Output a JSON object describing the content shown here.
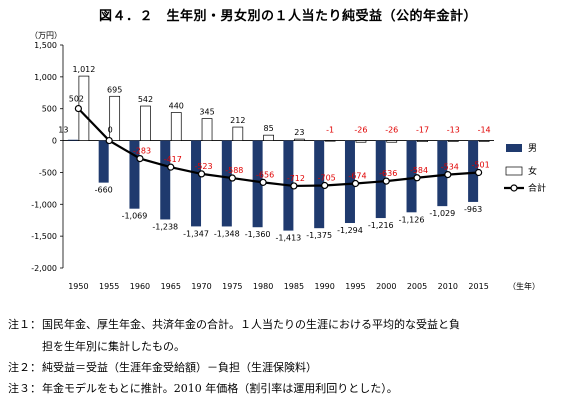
{
  "figure_title": "図４．２　生年別・男女別の１人当たり純受益（公的年金計）",
  "chart_data": {
    "type": "bar",
    "y_unit": "（万円）",
    "x_unit": "（生年）",
    "categories": [
      "1950",
      "1955",
      "1960",
      "1965",
      "1970",
      "1975",
      "1980",
      "1985",
      "1990",
      "1995",
      "2000",
      "2005",
      "2010",
      "2015"
    ],
    "ylim": [
      -2000,
      1500
    ],
    "y_ticks": [
      1500,
      1000,
      500,
      0,
      -500,
      -1000,
      -1500,
      -2000
    ],
    "y_tick_labels": [
      "1,500",
      "1,000",
      "500",
      "0",
      "-500",
      "-1,000",
      "-1,500",
      "-2,000"
    ],
    "grid": false,
    "legend_position": "right",
    "series": [
      {
        "name": "男",
        "kind": "bar",
        "color": "#1f3a6e",
        "values": [
          13,
          -660,
          -1069,
          -1238,
          -1347,
          -1348,
          -1360,
          -1413,
          -1375,
          -1294,
          -1216,
          -1126,
          -1029,
          -963
        ],
        "labels": [
          "13",
          "-660",
          "-1,069",
          "-1,238",
          "-1,347",
          "-1,348",
          "-1,360",
          "-1,413",
          "-1,375",
          "-1,294",
          "-1,216",
          "-1,126",
          "-1,029",
          "-963"
        ]
      },
      {
        "name": "女",
        "kind": "bar",
        "color": "#ffffff",
        "values": [
          1012,
          695,
          542,
          440,
          345,
          212,
          85,
          23,
          -1,
          -26,
          -26,
          -17,
          -13,
          -14
        ],
        "labels": [
          "1,012",
          "695",
          "542",
          "440",
          "345",
          "212",
          "85",
          "23",
          "-1",
          "-26",
          "-26",
          "-17",
          "-13",
          "-14"
        ]
      },
      {
        "name": "合計",
        "kind": "line",
        "color": "#000000",
        "values": [
          502,
          0,
          -283,
          -417,
          -523,
          -588,
          -656,
          -712,
          -705,
          -674,
          -636,
          -584,
          -534,
          -501
        ],
        "labels": [
          "502",
          "0",
          "-283",
          "-417",
          "-523",
          "-588",
          "-656",
          "-712",
          "-705",
          "-674",
          "-636",
          "-584",
          "-534",
          "-501"
        ]
      }
    ]
  },
  "notes": [
    {
      "label": "注１：",
      "text": "国民年金、厚生年金、共済年金の合計。１人当たりの生涯における平均的な受益と負"
    },
    {
      "label": "",
      "text": "担を生年別に集計したもの。"
    },
    {
      "label": "注２：",
      "text": "純受益＝受益（生涯年金受給額）－負担（生涯保険料）"
    },
    {
      "label": "注３：",
      "text": "年金モデルをもとに推計。2010 年価格（割引率は運用利回りとした）。"
    }
  ]
}
